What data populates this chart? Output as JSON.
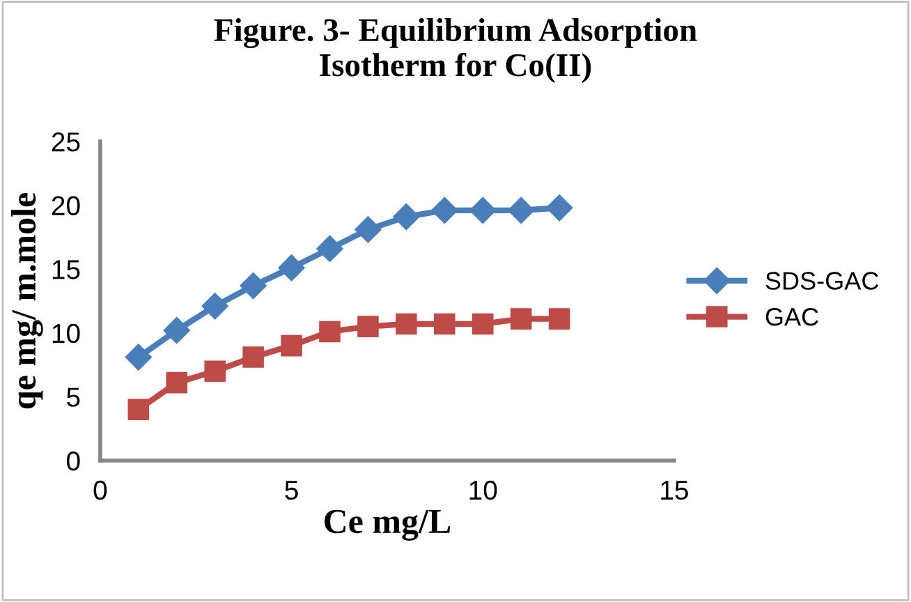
{
  "chart_data": {
    "type": "line",
    "title": "Figure. 3- Equilibrium Adsorption\nIsotherm for Co(II)",
    "xlabel": "Ce mg/L",
    "ylabel": "qe mg/ m.mole",
    "x": [
      1,
      2,
      3,
      4,
      5,
      6,
      7,
      8,
      9,
      10,
      11,
      12
    ],
    "series": [
      {
        "name": "SDS-GAC",
        "color": "#4a7ebb",
        "marker": "diamond",
        "values": [
          8.1,
          10.2,
          12.1,
          13.7,
          15.1,
          16.6,
          18.1,
          19.1,
          19.6,
          19.6,
          19.6,
          19.8
        ]
      },
      {
        "name": "GAC",
        "color": "#be4b48",
        "marker": "square",
        "values": [
          4.0,
          6.1,
          7.0,
          8.1,
          9.0,
          10.1,
          10.5,
          10.7,
          10.7,
          10.7,
          11.1,
          11.1
        ]
      }
    ],
    "xlim": [
      0,
      15
    ],
    "xticks": [
      0,
      5,
      10,
      15
    ],
    "ylim": [
      0,
      25
    ],
    "yticks": [
      0,
      5,
      10,
      15,
      20,
      25
    ],
    "grid": false,
    "legend": "right"
  }
}
